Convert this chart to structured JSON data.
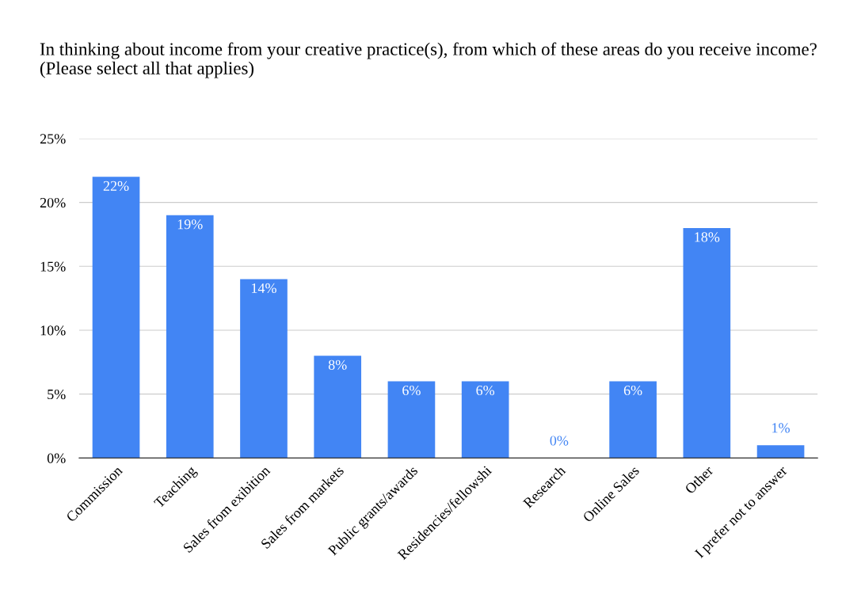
{
  "chart_data": {
    "type": "bar",
    "title": "In thinking about income from your creative practice(s), from which of these areas do you receive income? (Please select all that applies)",
    "categories": [
      "Commission",
      "Teaching",
      "Sales from exibition",
      "Sales from markets",
      "Public grants/awards",
      "Residencies/fellowshi",
      "Research",
      "Online Sales",
      "Other",
      "I prefer not to answer"
    ],
    "values": [
      22,
      19,
      14,
      8,
      6,
      6,
      0,
      6,
      18,
      1
    ],
    "value_labels": [
      "22%",
      "19%",
      "14%",
      "8%",
      "6%",
      "6%",
      "0%",
      "6%",
      "18%",
      "1%"
    ],
    "color": "#4285f4",
    "ylim": [
      0,
      25
    ],
    "yticks": [
      {
        "value": 0,
        "label": "0%"
      },
      {
        "value": 5,
        "label": "5%"
      },
      {
        "value": 10,
        "label": "10%"
      },
      {
        "value": 15,
        "label": "15%"
      },
      {
        "value": 20,
        "label": "20%"
      },
      {
        "value": 25,
        "label": "25%"
      }
    ],
    "grid": "y",
    "legend": false
  }
}
